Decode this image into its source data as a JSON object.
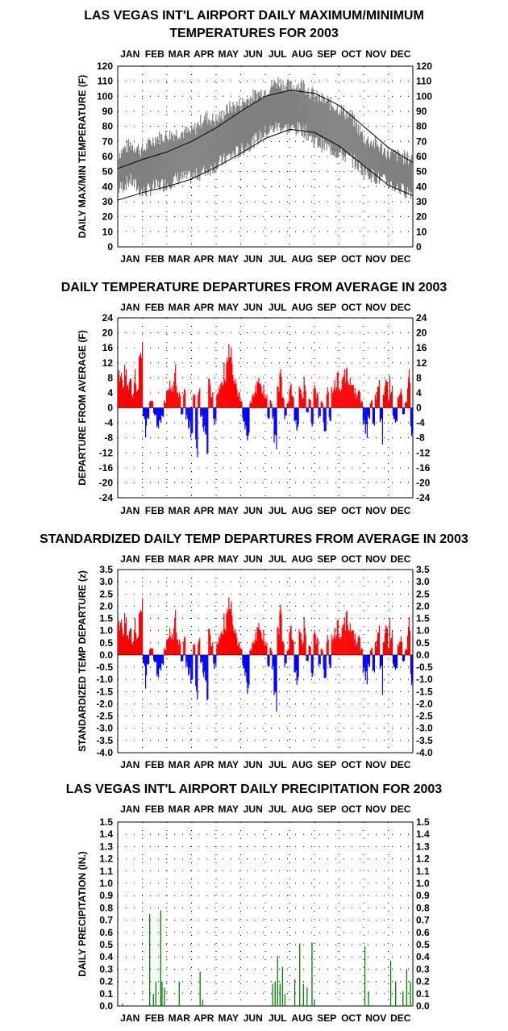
{
  "months": [
    "JAN",
    "FEB",
    "MAR",
    "APR",
    "MAY",
    "JUN",
    "JUL",
    "AUG",
    "SEP",
    "OCT",
    "NOV",
    "DEC"
  ],
  "colors": {
    "temp_band": "#808080",
    "normal_lines": "#000000",
    "above_average": "#ff0000",
    "below_average": "#0000ff",
    "precipitation": "#008000",
    "grid_dots": "#000000"
  },
  "chart_data": [
    {
      "id": "maxmin",
      "type": "area",
      "title_lines": [
        "LAS VEGAS INT'L AIRPORT DAILY MAXIMUM/MINIMUM",
        "TEMPERATURES FOR 2003"
      ],
      "ylabel": "DAILY MAX/MIN TEMPERATURE (F)",
      "ylim": [
        0,
        120
      ],
      "yticks": [
        "0",
        "10",
        "20",
        "30",
        "40",
        "50",
        "60",
        "70",
        "80",
        "90",
        "100",
        "110",
        "120"
      ],
      "grid": "dotted",
      "x_unit": "month",
      "series": [
        {
          "kind": "band",
          "x": [
            0,
            0.5,
            1,
            1.5,
            2,
            2.5,
            3,
            3.5,
            4,
            4.5,
            5,
            5.5,
            6,
            6.5,
            7,
            7.5,
            8,
            8.5,
            9,
            9.5,
            10,
            10.5,
            11,
            11.5,
            12
          ],
          "high": [
            62,
            68,
            64,
            72,
            74,
            76,
            76,
            86,
            84,
            92,
            95,
            100,
            104,
            110,
            106,
            108,
            100,
            96,
            92,
            86,
            72,
            68,
            62,
            60,
            58
          ],
          "low": [
            38,
            44,
            36,
            40,
            42,
            46,
            46,
            50,
            54,
            60,
            64,
            70,
            76,
            80,
            78,
            78,
            70,
            66,
            62,
            58,
            50,
            46,
            42,
            38,
            36
          ]
        },
        {
          "kind": "line",
          "name": "normal high",
          "x": [
            0,
            1,
            2,
            3,
            4,
            5,
            6,
            7,
            8,
            9,
            10,
            11,
            12
          ],
          "values": [
            52,
            58,
            63,
            70,
            79,
            90,
            100,
            104,
            102,
            94,
            80,
            66,
            56
          ]
        },
        {
          "kind": "line",
          "name": "normal low",
          "x": [
            0,
            1,
            2,
            3,
            4,
            5,
            6,
            7,
            8,
            9,
            10,
            11,
            12
          ],
          "values": [
            31,
            36,
            40,
            45,
            53,
            62,
            72,
            78,
            76,
            67,
            54,
            41,
            34
          ]
        }
      ]
    },
    {
      "id": "departures",
      "type": "bar",
      "title_lines": [
        "DAILY TEMPERATURE DEPARTURES FROM AVERAGE IN 2003"
      ],
      "ylabel": "DEPARTURE FROM AVERAGE (F)",
      "ylim": [
        -24,
        24
      ],
      "yticks": [
        "-24",
        "-20",
        "-16",
        "-12",
        "-8",
        "-4",
        "0",
        "4",
        "8",
        "12",
        "16",
        "20",
        "24"
      ],
      "grid": "dotted",
      "x_unit": "month",
      "points": [
        [
          0.05,
          10
        ],
        [
          0.1,
          14
        ],
        [
          0.2,
          8
        ],
        [
          0.3,
          12
        ],
        [
          0.4,
          6
        ],
        [
          0.5,
          10
        ],
        [
          0.6,
          4
        ],
        [
          0.7,
          11
        ],
        [
          0.8,
          6
        ],
        [
          0.9,
          16
        ],
        [
          0.97,
          18
        ],
        [
          1.05,
          -4
        ],
        [
          1.12,
          -8
        ],
        [
          1.2,
          -3
        ],
        [
          1.35,
          2
        ],
        [
          1.5,
          -2
        ],
        [
          1.6,
          -6
        ],
        [
          1.7,
          -5
        ],
        [
          1.8,
          -3
        ],
        [
          1.9,
          2
        ],
        [
          2.0,
          5
        ],
        [
          2.1,
          8
        ],
        [
          2.2,
          6
        ],
        [
          2.3,
          12
        ],
        [
          2.4,
          7
        ],
        [
          2.5,
          4
        ],
        [
          2.6,
          -2
        ],
        [
          2.7,
          6
        ],
        [
          2.8,
          -3
        ],
        [
          2.9,
          -6
        ],
        [
          3.0,
          -8
        ],
        [
          3.1,
          4
        ],
        [
          3.15,
          -10
        ],
        [
          3.2,
          -13
        ],
        [
          3.3,
          6
        ],
        [
          3.4,
          -3
        ],
        [
          3.5,
          -7
        ],
        [
          3.6,
          -12
        ],
        [
          3.7,
          8
        ],
        [
          3.8,
          4
        ],
        [
          3.95,
          -5
        ],
        [
          4.05,
          4
        ],
        [
          4.15,
          8
        ],
        [
          4.25,
          10
        ],
        [
          4.35,
          12
        ],
        [
          4.45,
          14
        ],
        [
          4.55,
          18
        ],
        [
          4.6,
          16
        ],
        [
          4.7,
          10
        ],
        [
          4.8,
          8
        ],
        [
          4.9,
          4
        ],
        [
          5.0,
          2
        ],
        [
          5.1,
          -4
        ],
        [
          5.2,
          -8
        ],
        [
          5.3,
          -11
        ],
        [
          5.4,
          2
        ],
        [
          5.5,
          4
        ],
        [
          5.6,
          6
        ],
        [
          5.7,
          8
        ],
        [
          5.8,
          10
        ],
        [
          5.9,
          6
        ],
        [
          6.0,
          4
        ],
        [
          6.1,
          -3
        ],
        [
          6.2,
          2
        ],
        [
          6.3,
          -4
        ],
        [
          6.35,
          -9
        ],
        [
          6.4,
          -11
        ],
        [
          6.5,
          6
        ],
        [
          6.6,
          10
        ],
        [
          6.7,
          4
        ],
        [
          6.8,
          -3
        ],
        [
          6.9,
          2
        ],
        [
          7.0,
          8
        ],
        [
          7.1,
          4
        ],
        [
          7.2,
          -4
        ],
        [
          7.3,
          -6
        ],
        [
          7.4,
          6
        ],
        [
          7.5,
          4
        ],
        [
          7.6,
          8
        ],
        [
          7.7,
          -2
        ],
        [
          7.8,
          3
        ],
        [
          7.9,
          -5
        ],
        [
          8.0,
          6
        ],
        [
          8.1,
          4
        ],
        [
          8.2,
          -3
        ],
        [
          8.3,
          2
        ],
        [
          8.4,
          -6
        ],
        [
          8.5,
          6
        ],
        [
          8.6,
          -4
        ],
        [
          8.7,
          6
        ],
        [
          8.8,
          8
        ],
        [
          8.9,
          10
        ],
        [
          9.0,
          6
        ],
        [
          9.1,
          8
        ],
        [
          9.2,
          12
        ],
        [
          9.3,
          13
        ],
        [
          9.4,
          11
        ],
        [
          9.5,
          8
        ],
        [
          9.6,
          6
        ],
        [
          9.7,
          4
        ],
        [
          9.8,
          6
        ],
        [
          9.9,
          2
        ],
        [
          10.0,
          -5
        ],
        [
          10.1,
          -8
        ],
        [
          10.2,
          -3
        ],
        [
          10.3,
          2
        ],
        [
          10.4,
          -6
        ],
        [
          10.5,
          4
        ],
        [
          10.6,
          8
        ],
        [
          10.7,
          -4
        ],
        [
          10.75,
          -12
        ],
        [
          10.8,
          6
        ],
        [
          10.9,
          10
        ],
        [
          11.0,
          2
        ],
        [
          11.05,
          14
        ],
        [
          11.1,
          6
        ],
        [
          11.2,
          -3
        ],
        [
          11.3,
          -4
        ],
        [
          11.4,
          4
        ],
        [
          11.5,
          6
        ],
        [
          11.6,
          -2
        ],
        [
          11.7,
          2
        ],
        [
          11.8,
          8
        ],
        [
          11.85,
          10
        ],
        [
          11.9,
          -5
        ],
        [
          11.95,
          -8
        ]
      ]
    },
    {
      "id": "standardized",
      "type": "bar",
      "title_lines": [
        "STANDARDIZED DAILY TEMP DEPARTURES FROM AVERAGE IN 2003"
      ],
      "ylabel": "STANDARDIZED TEMP DEPARTURE (z)",
      "ylim": [
        -4.0,
        3.5
      ],
      "yticks": [
        "-4.0",
        "-3.5",
        "-3.0",
        "-2.5",
        "-2.0",
        "-1.5",
        "-1.0",
        "-0.5",
        "0.0",
        "0.5",
        "1.0",
        "1.5",
        "2.0",
        "2.5",
        "3.0",
        "3.5"
      ],
      "grid": "dotted",
      "x_unit": "month",
      "points": [
        [
          0.05,
          1.4
        ],
        [
          0.1,
          2.2
        ],
        [
          0.2,
          1.2
        ],
        [
          0.3,
          1.8
        ],
        [
          0.4,
          0.8
        ],
        [
          0.5,
          1.4
        ],
        [
          0.6,
          0.6
        ],
        [
          0.7,
          1.6
        ],
        [
          0.8,
          0.9
        ],
        [
          0.9,
          2.0
        ],
        [
          0.97,
          2.4
        ],
        [
          1.05,
          -0.6
        ],
        [
          1.12,
          -1.4
        ],
        [
          1.2,
          -0.4
        ],
        [
          1.35,
          0.3
        ],
        [
          1.5,
          -0.3
        ],
        [
          1.6,
          -1.0
        ],
        [
          1.7,
          -0.8
        ],
        [
          1.8,
          -0.5
        ],
        [
          1.9,
          0.3
        ],
        [
          2.0,
          0.7
        ],
        [
          2.1,
          1.2
        ],
        [
          2.2,
          0.9
        ],
        [
          2.3,
          1.9
        ],
        [
          2.4,
          1.1
        ],
        [
          2.5,
          0.6
        ],
        [
          2.6,
          -0.3
        ],
        [
          2.7,
          0.9
        ],
        [
          2.8,
          -0.5
        ],
        [
          2.9,
          -0.9
        ],
        [
          3.0,
          -1.2
        ],
        [
          3.1,
          0.5
        ],
        [
          3.15,
          -1.5
        ],
        [
          3.2,
          -1.8
        ],
        [
          3.3,
          0.8
        ],
        [
          3.4,
          -0.4
        ],
        [
          3.5,
          -1.0
        ],
        [
          3.6,
          -1.8
        ],
        [
          3.7,
          1.1
        ],
        [
          3.8,
          0.5
        ],
        [
          3.95,
          -0.6
        ],
        [
          4.05,
          0.5
        ],
        [
          4.15,
          1.1
        ],
        [
          4.25,
          1.4
        ],
        [
          4.35,
          1.7
        ],
        [
          4.45,
          2.0
        ],
        [
          4.55,
          2.5
        ],
        [
          4.6,
          2.2
        ],
        [
          4.7,
          1.4
        ],
        [
          4.8,
          1.1
        ],
        [
          4.9,
          0.5
        ],
        [
          5.0,
          0.3
        ],
        [
          5.1,
          -0.6
        ],
        [
          5.2,
          -1.2
        ],
        [
          5.3,
          -2.0
        ],
        [
          5.4,
          0.3
        ],
        [
          5.5,
          0.6
        ],
        [
          5.6,
          0.9
        ],
        [
          5.7,
          1.3
        ],
        [
          5.8,
          1.6
        ],
        [
          5.9,
          1.0
        ],
        [
          6.0,
          0.6
        ],
        [
          6.1,
          -0.5
        ],
        [
          6.2,
          0.3
        ],
        [
          6.3,
          -0.8
        ],
        [
          6.35,
          -1.6
        ],
        [
          6.4,
          -2.3
        ],
        [
          6.5,
          1.2
        ],
        [
          6.6,
          2.0
        ],
        [
          6.7,
          0.8
        ],
        [
          6.8,
          -0.5
        ],
        [
          6.9,
          0.3
        ],
        [
          7.0,
          1.5
        ],
        [
          7.1,
          0.8
        ],
        [
          7.2,
          -0.8
        ],
        [
          7.3,
          -1.2
        ],
        [
          7.4,
          1.1
        ],
        [
          7.5,
          0.7
        ],
        [
          7.6,
          1.5
        ],
        [
          7.7,
          -0.4
        ],
        [
          7.8,
          0.5
        ],
        [
          7.9,
          -0.9
        ],
        [
          8.0,
          1.0
        ],
        [
          8.1,
          0.7
        ],
        [
          8.2,
          -0.5
        ],
        [
          8.3,
          0.3
        ],
        [
          8.4,
          -0.9
        ],
        [
          8.5,
          0.9
        ],
        [
          8.6,
          -0.6
        ],
        [
          8.7,
          0.9
        ],
        [
          8.8,
          1.2
        ],
        [
          8.9,
          1.5
        ],
        [
          9.0,
          0.9
        ],
        [
          9.1,
          1.2
        ],
        [
          9.2,
          1.8
        ],
        [
          9.3,
          2.2
        ],
        [
          9.4,
          1.8
        ],
        [
          9.5,
          1.3
        ],
        [
          9.6,
          1.0
        ],
        [
          9.7,
          0.6
        ],
        [
          9.8,
          1.0
        ],
        [
          9.9,
          0.3
        ],
        [
          10.0,
          -0.8
        ],
        [
          10.1,
          -1.2
        ],
        [
          10.2,
          -0.5
        ],
        [
          10.3,
          0.3
        ],
        [
          10.4,
          -0.9
        ],
        [
          10.5,
          0.6
        ],
        [
          10.6,
          1.3
        ],
        [
          10.7,
          -0.6
        ],
        [
          10.75,
          -2.0
        ],
        [
          10.8,
          0.9
        ],
        [
          10.9,
          1.6
        ],
        [
          11.0,
          0.3
        ],
        [
          11.05,
          2.5
        ],
        [
          11.1,
          1.0
        ],
        [
          11.2,
          -0.5
        ],
        [
          11.3,
          -0.6
        ],
        [
          11.4,
          0.6
        ],
        [
          11.5,
          0.9
        ],
        [
          11.6,
          -0.3
        ],
        [
          11.7,
          0.3
        ],
        [
          11.8,
          1.2
        ],
        [
          11.85,
          1.5
        ],
        [
          11.9,
          -0.8
        ],
        [
          11.95,
          -1.3
        ]
      ]
    },
    {
      "id": "precip",
      "type": "bar",
      "title_lines": [
        "LAS VEGAS INT'L AIRPORT DAILY PRECIPITATION FOR 2003"
      ],
      "ylabel": "DAILY PRECIPITATION (IN.)",
      "ylim": [
        0.0,
        1.5
      ],
      "yticks": [
        "0.0",
        "0.1",
        "0.2",
        "0.3",
        "0.4",
        "0.5",
        "0.6",
        "0.7",
        "0.8",
        "0.9",
        "1.0",
        "1.1",
        "1.2",
        "1.3",
        "1.4",
        "1.5"
      ],
      "grid": "dotted",
      "x_unit": "month",
      "points": [
        [
          0.2,
          0.02
        ],
        [
          1.3,
          0.75
        ],
        [
          1.45,
          0.1
        ],
        [
          1.55,
          0.2
        ],
        [
          1.75,
          0.78
        ],
        [
          1.8,
          0.2
        ],
        [
          1.9,
          0.15
        ],
        [
          2.5,
          0.2
        ],
        [
          3.35,
          0.28
        ],
        [
          3.45,
          0.05
        ],
        [
          6.3,
          0.18
        ],
        [
          6.4,
          0.2
        ],
        [
          6.5,
          0.41
        ],
        [
          6.6,
          0.18
        ],
        [
          6.7,
          0.32
        ],
        [
          6.8,
          0.1
        ],
        [
          7.2,
          0.22
        ],
        [
          7.4,
          0.51
        ],
        [
          7.55,
          0.18
        ],
        [
          7.7,
          0.15
        ],
        [
          7.9,
          0.52
        ],
        [
          8.0,
          0.05
        ],
        [
          10.05,
          0.49
        ],
        [
          10.2,
          0.12
        ],
        [
          11.1,
          0.37
        ],
        [
          11.3,
          0.2
        ],
        [
          11.6,
          0.12
        ],
        [
          11.75,
          0.3
        ],
        [
          11.9,
          0.2
        ],
        [
          12.0,
          0.27
        ]
      ]
    }
  ]
}
